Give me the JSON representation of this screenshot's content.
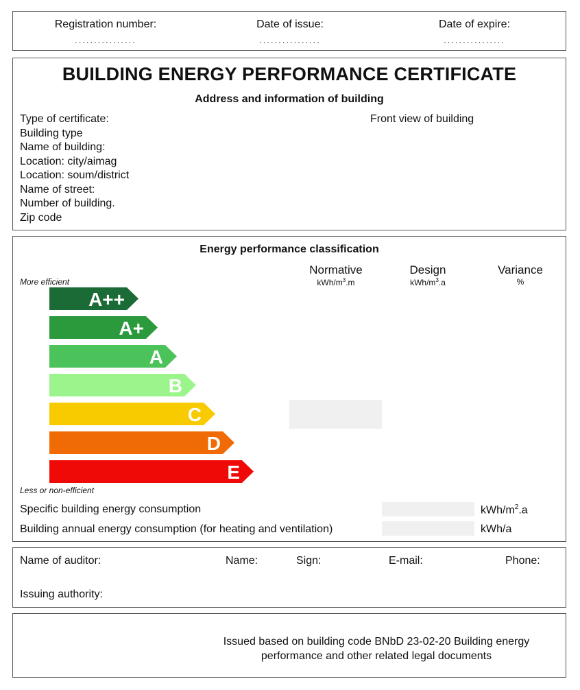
{
  "header": {
    "registration_label": "Registration number:",
    "issue_label": "Date of issue:",
    "expire_label": "Date of expire:",
    "dots": "................"
  },
  "certificate": {
    "title": "BUILDING ENERGY PERFORMANCE CERTIFICATE",
    "subtitle": "Address and information of building",
    "fields": [
      "Type of certificate:",
      "Building type",
      "Name of building:",
      "Location: city/aimag",
      "Location: soum/district",
      "Name of street:",
      "Number of building.",
      "Zip code"
    ],
    "front_view": "Front view of building"
  },
  "energy": {
    "title": "Energy performance classification",
    "columns": [
      {
        "name": "Normative",
        "unit_pre": "kWh/m",
        "unit_sup": "3",
        "unit_post": ".m"
      },
      {
        "name": "Design",
        "unit_pre": "kWh/m",
        "unit_sup": "3",
        "unit_post": ".a"
      },
      {
        "name": "Variance",
        "unit_pre": "%",
        "unit_sup": "",
        "unit_post": ""
      }
    ],
    "more_efficient": "More efficient",
    "less_efficient": "Less or non-efficient",
    "bands": [
      {
        "label": "A++",
        "color": "#1b6b36"
      },
      {
        "label": "A+",
        "color": "#2a9a3c"
      },
      {
        "label": "A",
        "color": "#4cc35a"
      },
      {
        "label": "B",
        "color": "#9cf58c"
      },
      {
        "label": "C",
        "color": "#f8ca00"
      },
      {
        "label": "D",
        "color": "#f06a06"
      },
      {
        "label": "E",
        "color": "#ef0a07"
      }
    ],
    "specific_label": "Specific building energy consumption",
    "specific_unit_pre": "kWh/m",
    "specific_unit_sup": "2",
    "specific_unit_post": ".a",
    "annual_label": "Building annual energy consumption (for heating and ventilation)",
    "annual_unit": "kWh/a"
  },
  "auditor": {
    "name_of_auditor": "Name of auditor:",
    "name": "Name:",
    "sign": "Sign:",
    "email": "E-mail:",
    "phone": "Phone:",
    "issuing_authority": "Issuing authority:"
  },
  "footer": {
    "text": "Issued based on building code BNbD 23-02-20 Building energy performance and other related legal documents"
  }
}
